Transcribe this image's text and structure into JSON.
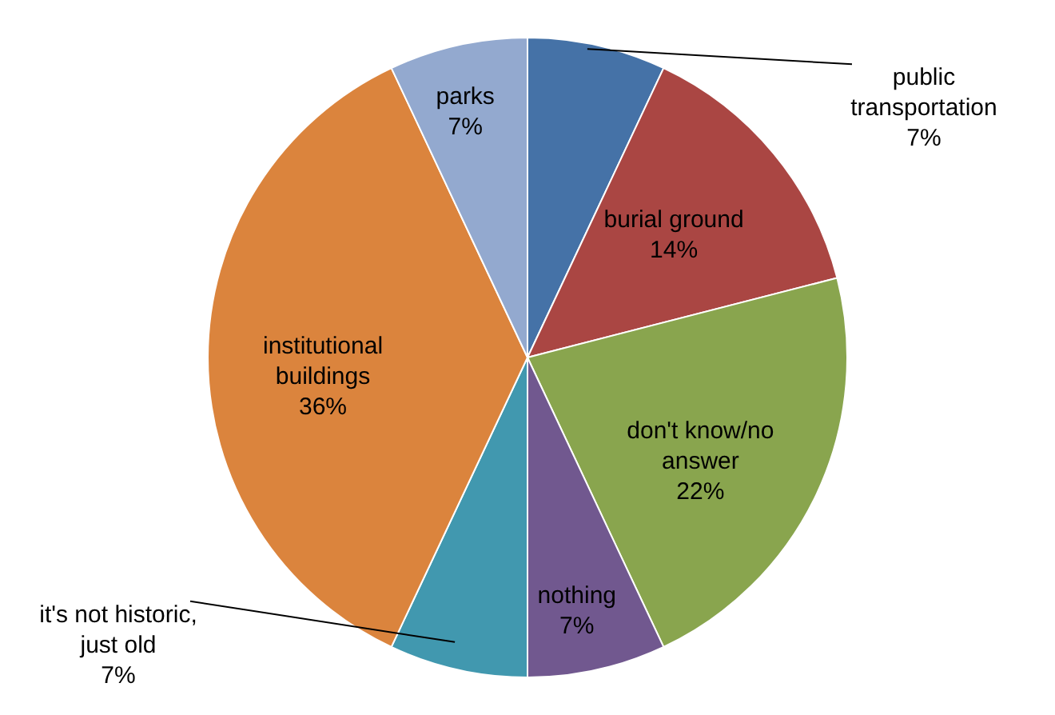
{
  "chart_data": {
    "type": "pie",
    "categories": [
      "public transportation",
      "burial ground",
      "don't know/no answer",
      "nothing",
      "it's not historic, just old",
      "institutional buildings",
      "parks"
    ],
    "values": [
      7,
      14,
      22,
      7,
      7,
      36,
      7
    ],
    "value_labels": [
      "7%",
      "14%",
      "22%",
      "7%",
      "7%",
      "36%",
      "7%"
    ],
    "colors": [
      "#4572a7",
      "#aa4643",
      "#89a54e",
      "#71588f",
      "#4198af",
      "#db843d",
      "#93a9cf"
    ]
  }
}
